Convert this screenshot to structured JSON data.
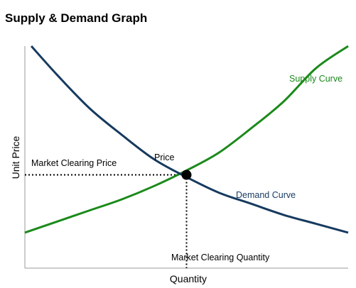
{
  "chart_data": {
    "type": "line",
    "title": "Supply & Demand Graph",
    "xlabel": "Quantity",
    "ylabel": "Unit Price",
    "xlim": [
      0,
      10
    ],
    "ylim": [
      0,
      10
    ],
    "grid": false,
    "series": [
      {
        "name": "Supply Curve",
        "color": "#1a8a1a",
        "x": [
          0,
          1,
          2,
          3,
          4,
          5,
          6,
          7,
          8,
          9,
          10
        ],
        "y": [
          1.6,
          2.1,
          2.6,
          3.1,
          3.7,
          4.4,
          5.2,
          6.3,
          7.5,
          9.0,
          10.0
        ]
      },
      {
        "name": "Demand Curve",
        "color": "#163a5f",
        "x": [
          0.2,
          1,
          2,
          3,
          4,
          5,
          6,
          7,
          8,
          9,
          10
        ],
        "y": [
          10.0,
          8.7,
          7.2,
          6.0,
          4.9,
          4.1,
          3.4,
          2.9,
          2.4,
          2.0,
          1.6
        ]
      }
    ],
    "equilibrium": {
      "x": 5.0,
      "y": 4.2,
      "point_label": "Price"
    },
    "annotations": {
      "price": "Market Clearing Price",
      "quantity": "Market Clearing Quantity"
    }
  }
}
